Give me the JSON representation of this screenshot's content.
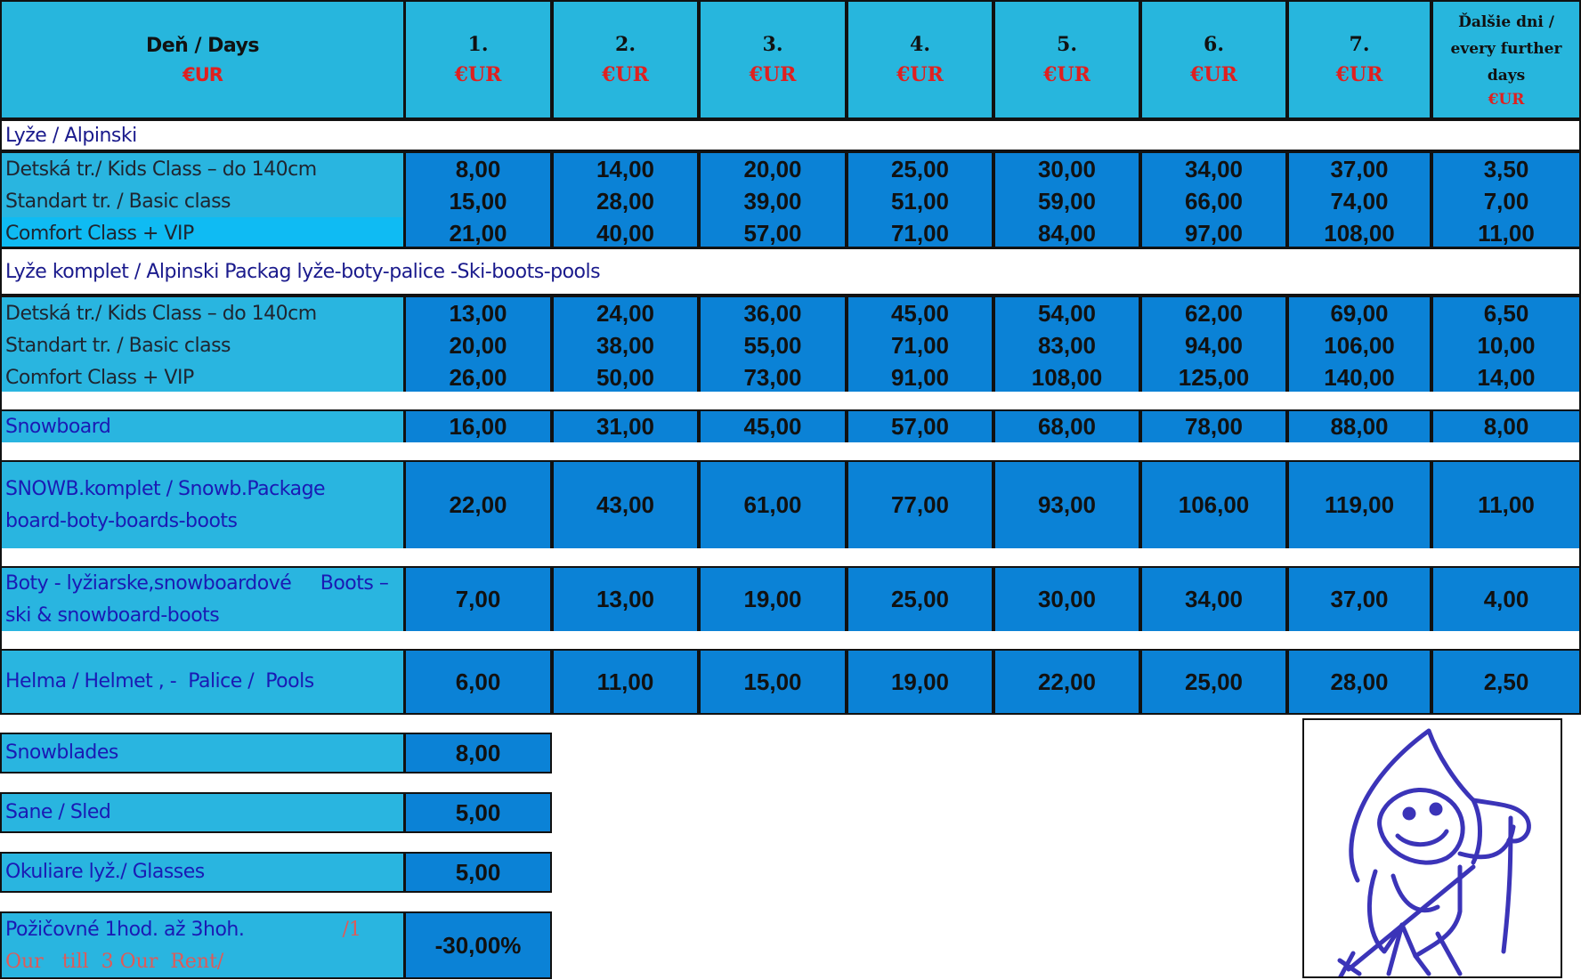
{
  "header": {
    "first_title": "Deň / Days",
    "first_currency": "€UR",
    "days": [
      {
        "num": "1.",
        "cur": "€UR"
      },
      {
        "num": "2.",
        "cur": "€UR"
      },
      {
        "num": "3.",
        "cur": "€UR"
      },
      {
        "num": "4.",
        "cur": "€UR"
      },
      {
        "num": "5.",
        "cur": "€UR"
      },
      {
        "num": "6.",
        "cur": "€UR"
      },
      {
        "num": "7.",
        "cur": "€UR"
      }
    ],
    "further_line1": "Ďalšie dni  /",
    "further_line2": "every further",
    "further_line3": "days",
    "further_cur": "€UR"
  },
  "sections": {
    "alpine": "Lyže / Alpinski",
    "alpine_package": "Lyže komplet / Alpinski Packag   lyže-boty-palice -Ski-boots-pools"
  },
  "alpine_rows": [
    {
      "label": "Detská tr./ Kids Class – do 140cm",
      "values": [
        "8,00",
        "14,00",
        "20,00",
        "25,00",
        "30,00",
        "34,00",
        "37,00",
        "3,50"
      ]
    },
    {
      "label": "Standart tr. / Basic class",
      "values": [
        "15,00",
        "28,00",
        "39,00",
        "51,00",
        "59,00",
        "66,00",
        "74,00",
        "7,00"
      ]
    },
    {
      "label": "Comfort Class + VIP",
      "values": [
        "21,00",
        "40,00",
        "57,00",
        "71,00",
        "84,00",
        "97,00",
        "108,00",
        "11,00"
      ]
    }
  ],
  "package_rows": [
    {
      "label": "Detská tr./ Kids Class – do 140cm",
      "values": [
        "13,00",
        "24,00",
        "36,00",
        "45,00",
        "54,00",
        "62,00",
        "69,00",
        "6,50"
      ]
    },
    {
      "label": "Standart tr. / Basic class",
      "values": [
        "20,00",
        "38,00",
        "55,00",
        "71,00",
        "83,00",
        "94,00",
        "106,00",
        "10,00"
      ]
    },
    {
      "label": "Comfort Class + VIP",
      "values": [
        "26,00",
        "50,00",
        "73,00",
        "91,00",
        "108,00",
        "125,00",
        "140,00",
        "14,00"
      ]
    }
  ],
  "snowboard": {
    "label": "Snowboard",
    "values": [
      "16,00",
      "31,00",
      "45,00",
      "57,00",
      "68,00",
      "78,00",
      "88,00",
      "8,00"
    ]
  },
  "snowb_package": {
    "label_line1": "SNOWB.komplet / Snowb.Package",
    "label_line2": "board-boty-boards-boots",
    "values": [
      "22,00",
      "43,00",
      "61,00",
      "77,00",
      "93,00",
      "106,00",
      "119,00",
      "11,00"
    ]
  },
  "boots": {
    "label_line1": "Boty - lyžiarske,snowboardové     Boots –",
    "label_line2": "ski & snowboard-boots",
    "values": [
      "7,00",
      "13,00",
      "19,00",
      "25,00",
      "30,00",
      "34,00",
      "37,00",
      "4,00"
    ]
  },
  "helmet": {
    "label": "Helma / Helmet , -  Palice /  Pools",
    "values": [
      "6,00",
      "11,00",
      "15,00",
      "19,00",
      "22,00",
      "25,00",
      "28,00",
      "2,50"
    ]
  },
  "singles": [
    {
      "label": "Snowblades",
      "value": "8,00"
    },
    {
      "label": "Sane / Sled",
      "value": "5,00"
    },
    {
      "label": "Okuliare lyž./ Glasses",
      "value": "5,00"
    }
  ],
  "hourly": {
    "label_part1": "Požičovné 1hod. až 3hoh.",
    "label_part2": "/1",
    "label_line2": "Our   till  3 Our  Rent/",
    "value": "-30,00%"
  },
  "colors": {
    "header": "#27b6dd",
    "label": "#29b5e0",
    "value": "#0b82d6",
    "accent_red": "#e0201f",
    "text_blue": "#1a1ab4"
  },
  "mascot_icon": "ski-mascot-drawing"
}
